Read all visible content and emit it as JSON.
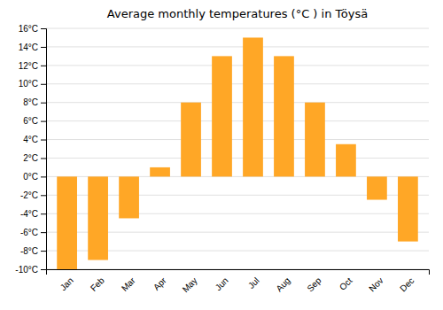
{
  "chart_data": {
    "type": "bar",
    "title": "Average monthly temperatures (°C ) in Töysä",
    "categories": [
      "Jan",
      "Feb",
      "Mar",
      "Apr",
      "May",
      "Jun",
      "Jul",
      "Aug",
      "Sep",
      "Oct",
      "Nov",
      "Dec"
    ],
    "values": [
      -10,
      -9,
      -4.5,
      1,
      8,
      13,
      15,
      13,
      8,
      3.5,
      -2.5,
      -7
    ],
    "color": "#FFA726",
    "ylim": [
      -10,
      16
    ],
    "yticks": [
      {
        "value": -10,
        "label": "-10°C"
      },
      {
        "value": -8,
        "label": "-8°C"
      },
      {
        "value": -6,
        "label": "-6°C"
      },
      {
        "value": -4,
        "label": "-4°C"
      },
      {
        "value": -2,
        "label": "-2°C"
      },
      {
        "value": 0,
        "label": "0°C"
      },
      {
        "value": 2,
        "label": "2°C"
      },
      {
        "value": 4,
        "label": "4°C"
      },
      {
        "value": 6,
        "label": "6°C"
      },
      {
        "value": 8,
        "label": "8°C"
      },
      {
        "value": 10,
        "label": "10°C"
      },
      {
        "value": 12,
        "label": "12°C"
      },
      {
        "value": 14,
        "label": "14°C"
      },
      {
        "value": 16,
        "label": "16°C"
      }
    ],
    "grid": true
  }
}
